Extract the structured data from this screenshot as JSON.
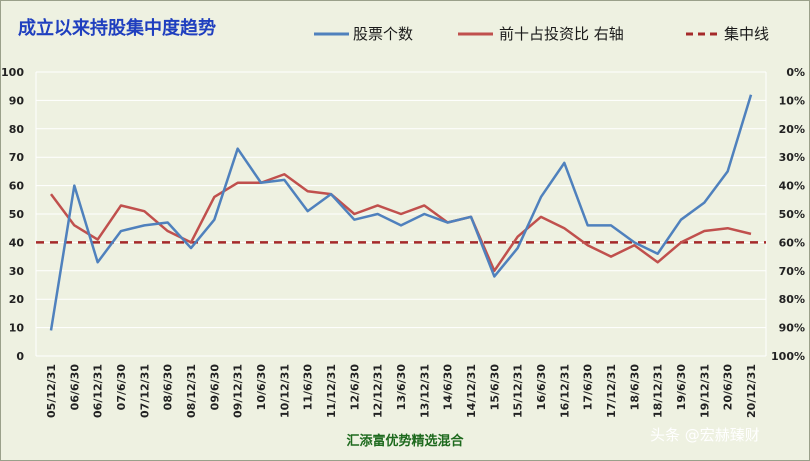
{
  "chart_data": {
    "type": "line",
    "title": "成立以来持股集中度趋势",
    "categories": [
      "05/12/31",
      "06/6/30",
      "06/12/31",
      "07/6/30",
      "07/12/31",
      "08/6/30",
      "08/12/31",
      "09/6/30",
      "09/12/31",
      "10/6/30",
      "10/12/31",
      "11/6/30",
      "11/12/31",
      "12/6/30",
      "12/12/31",
      "13/6/30",
      "13/12/31",
      "14/6/30",
      "14/12/31",
      "15/6/30",
      "15/12/31",
      "16/6/30",
      "16/12/31",
      "17/6/30",
      "17/12/31",
      "18/6/30",
      "18/12/31",
      "19/6/30",
      "19/12/31",
      "20/6/30",
      "20/12/31"
    ],
    "series": [
      {
        "name": "股票个数",
        "axis": "left",
        "color": "#4f81bd",
        "values": [
          9,
          60,
          33,
          44,
          46,
          47,
          38,
          48,
          73,
          61,
          62,
          51,
          57,
          48,
          50,
          46,
          50,
          47,
          49,
          28,
          38,
          56,
          68,
          46,
          46,
          40,
          36,
          48,
          54,
          65,
          92
        ]
      },
      {
        "name": "前十占投资比 右轴",
        "axis": "right",
        "color": "#c0504d",
        "values": [
          0.43,
          0.54,
          0.59,
          0.47,
          0.49,
          0.56,
          0.6,
          0.44,
          0.39,
          0.39,
          0.36,
          0.42,
          0.43,
          0.5,
          0.47,
          0.5,
          0.47,
          0.53,
          0.51,
          0.7,
          0.58,
          0.51,
          0.55,
          0.61,
          0.65,
          0.61,
          0.67,
          0.6,
          0.56,
          0.55,
          0.57
        ]
      },
      {
        "name": "集中线",
        "axis": "left",
        "color": "#a52a2a",
        "style": "dashed",
        "values_constant": 40
      }
    ],
    "y_left": {
      "ylim": [
        0,
        100
      ],
      "ticks": [
        "0",
        "10",
        "20",
        "30",
        "40",
        "50",
        "60",
        "70",
        "80",
        "90",
        "100"
      ]
    },
    "y_right": {
      "ylim": [
        0,
        1
      ],
      "inverted": true,
      "ticks": [
        "0%",
        "10%",
        "20%",
        "30%",
        "40%",
        "50%",
        "60%",
        "70%",
        "80%",
        "90%",
        "100%"
      ]
    },
    "grid": true,
    "legend": "top-right",
    "xlabel": "汇添富优势精选混合"
  },
  "watermark": "头条 @宏赫臻财"
}
